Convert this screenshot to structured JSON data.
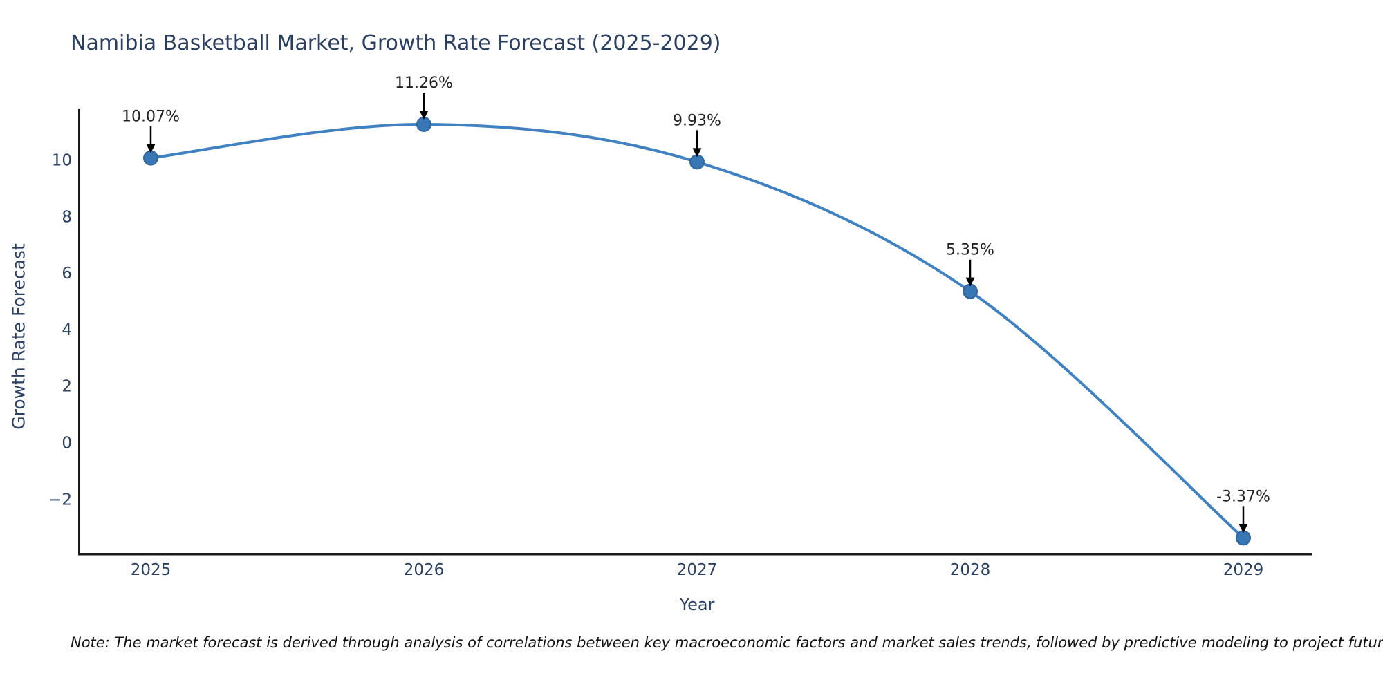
{
  "note": {
    "text": "Note: The market forecast is derived through analysis of correlations between key macroeconomic factors and market sales trends, followed by predictive modeling to project future sales"
  },
  "chart_data": {
    "type": "line",
    "title": "Namibia Basketball Market, Growth Rate Forecast (2025-2029)",
    "xlabel": "Year",
    "ylabel": "Growth Rate Forecast",
    "x": [
      2025,
      2026,
      2027,
      2028,
      2029
    ],
    "series": [
      {
        "name": "Growth Rate Forecast",
        "values": [
          10.07,
          11.26,
          9.93,
          5.35,
          -3.37
        ]
      }
    ],
    "point_labels": [
      "10.07%",
      "11.26%",
      "9.93%",
      "5.35%",
      "-3.37%"
    ],
    "yticks": [
      10,
      8,
      6,
      4,
      2,
      0,
      -2
    ],
    "ylim": [
      -3.95,
      11.8
    ],
    "line_shape": "spline",
    "grid": false,
    "legend_position": "none",
    "colors": {
      "line": "#3f81c1",
      "marker_fill": "#3876b4",
      "marker_edge": "#2f669f",
      "axis_line": "#1a1a1a",
      "tick_text": "#2a3f5f",
      "annotation_text": "#222222",
      "arrow": "#000000"
    }
  }
}
